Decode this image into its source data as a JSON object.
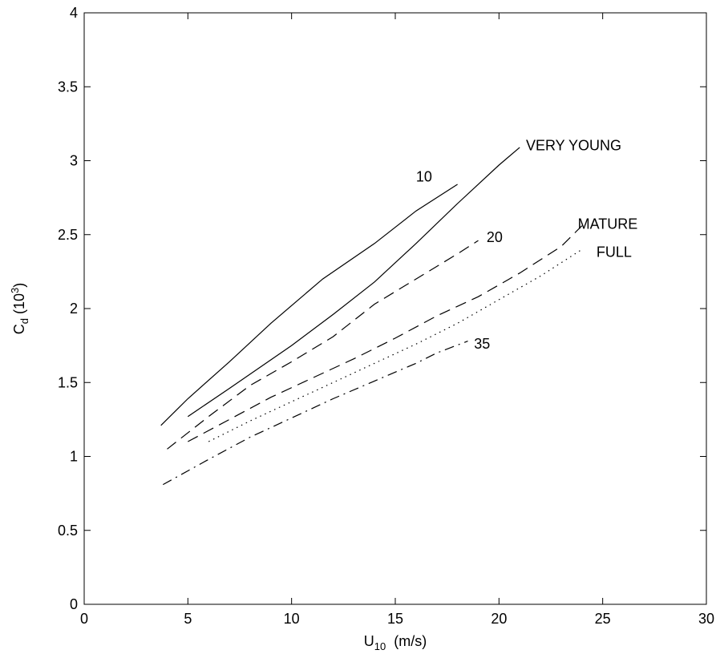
{
  "chart_data": {
    "type": "line",
    "title": "",
    "xlabel": {
      "main": "U",
      "sub": "10",
      "rest": "  (m/s)"
    },
    "ylabel": {
      "main": "C",
      "sub": "d",
      "rest": " (10",
      "sup": "3",
      "close": ")"
    },
    "xlim": [
      0,
      30
    ],
    "ylim": [
      0,
      4
    ],
    "xticks": [
      0,
      5,
      10,
      15,
      20,
      25,
      30
    ],
    "xtick_labels": [
      "0",
      "5",
      "10",
      "15",
      "20",
      "25",
      "30"
    ],
    "yticks": [
      0,
      0.5,
      1,
      1.5,
      2,
      2.5,
      3,
      3.5,
      4
    ],
    "ytick_labels": [
      "0",
      "0.5",
      "1",
      "1.5",
      "2",
      "2.5",
      "3",
      "3.5",
      "4"
    ],
    "grid": false,
    "series": [
      {
        "name": "10",
        "style": "solid",
        "x": [
          3.7,
          5,
          7,
          9,
          11.5,
          14,
          16,
          18
        ],
        "y": [
          1.21,
          1.39,
          1.64,
          1.9,
          2.2,
          2.44,
          2.66,
          2.84
        ]
      },
      {
        "name": "VERY YOUNG",
        "style": "solid",
        "x": [
          5,
          7,
          10,
          12,
          14,
          16,
          18,
          20,
          21
        ],
        "y": [
          1.27,
          1.46,
          1.75,
          1.96,
          2.18,
          2.44,
          2.71,
          2.97,
          3.09
        ]
      },
      {
        "name": "20",
        "style": "dashed",
        "x": [
          4,
          6,
          8,
          10,
          12,
          14,
          16,
          18,
          19
        ],
        "y": [
          1.05,
          1.27,
          1.48,
          1.64,
          1.81,
          2.03,
          2.2,
          2.37,
          2.46
        ]
      },
      {
        "name": "MATURE",
        "style": "dashed",
        "x": [
          5,
          7,
          9,
          11,
          13,
          15,
          17,
          19,
          21,
          23,
          24
        ],
        "y": [
          1.1,
          1.25,
          1.4,
          1.53,
          1.66,
          1.8,
          1.95,
          2.08,
          2.24,
          2.42,
          2.56
        ]
      },
      {
        "name": "FULL",
        "style": "dotted",
        "x": [
          6,
          8,
          10,
          12,
          14,
          16,
          18,
          20,
          22,
          24
        ],
        "y": [
          1.1,
          1.24,
          1.37,
          1.5,
          1.63,
          1.76,
          1.9,
          2.06,
          2.22,
          2.4
        ]
      },
      {
        "name": "35",
        "style": "dashdot",
        "x": [
          3.8,
          6,
          8,
          10,
          12,
          14,
          16,
          17,
          18.5
        ],
        "y": [
          0.81,
          0.98,
          1.13,
          1.26,
          1.39,
          1.51,
          1.63,
          1.7,
          1.78
        ]
      }
    ],
    "annotations": [
      {
        "text": "10",
        "x": 16.0,
        "y": 2.86
      },
      {
        "text": "VERY YOUNG",
        "x": 21.3,
        "y": 3.07
      },
      {
        "text": "20",
        "x": 19.4,
        "y": 2.45
      },
      {
        "text": "MATURE",
        "x": 23.8,
        "y": 2.54
      },
      {
        "text": "FULL",
        "x": 24.7,
        "y": 2.35
      },
      {
        "text": "35",
        "x": 18.8,
        "y": 1.73
      }
    ]
  }
}
